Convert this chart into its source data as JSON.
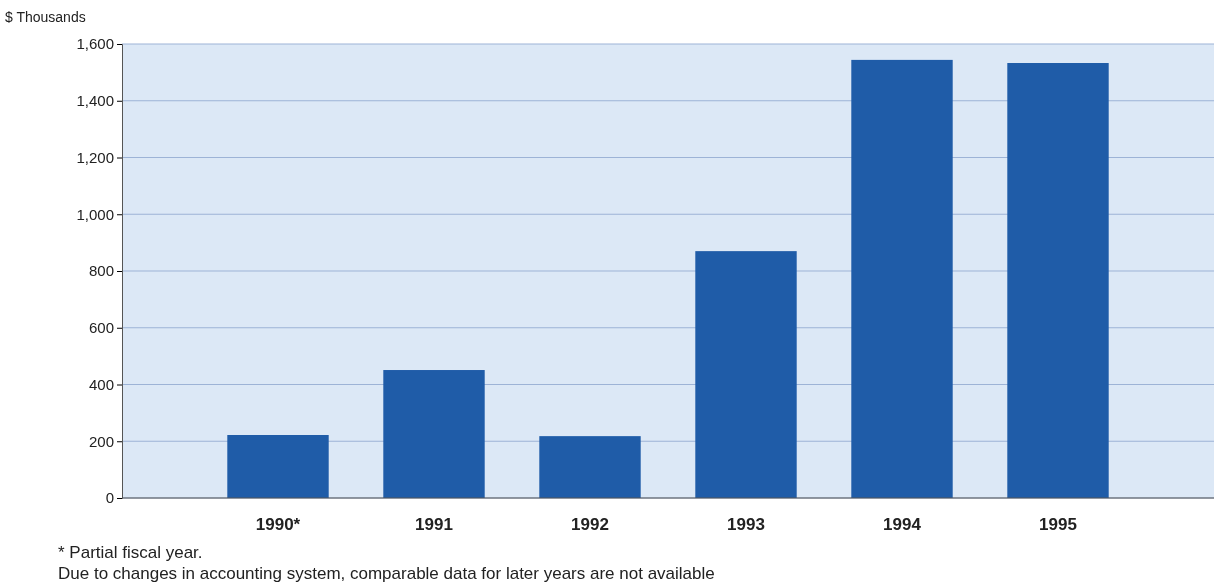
{
  "chart_data": {
    "type": "bar",
    "ylabel": "$ Thousands",
    "categories": [
      "1990*",
      "1991",
      "1992",
      "1993",
      "1994",
      "1995"
    ],
    "values": [
      222,
      451,
      218,
      870,
      1544,
      1533
    ],
    "color": "#1f5ca8",
    "ylim": [
      0,
      1600
    ],
    "yticks": [
      0,
      {
        "value": 200,
        "label": "200"
      },
      {
        "value": 400,
        "label": "400"
      },
      {
        "value": 600,
        "label": "600"
      },
      {
        "value": 800,
        "label": "800"
      },
      {
        "value": 1000,
        "label": "1,000"
      },
      {
        "value": 1200,
        "label": "1,200"
      },
      {
        "value": 1400,
        "label": "1,400"
      },
      {
        "value": 1600,
        "label": "1,600"
      }
    ],
    "grid": "y",
    "annotations": [
      "* Partial fiscal year.",
      "Due to changes in accounting system, comparable data for later years are not available"
    ]
  }
}
